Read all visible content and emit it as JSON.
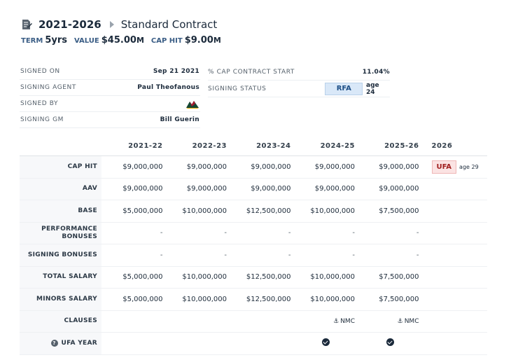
{
  "header": {
    "years": "2021-2026",
    "contract_type": "Standard Contract",
    "term_label": "TERM",
    "term_value": "5yrs",
    "value_label": "VALUE",
    "value_amount": "$45.00",
    "value_unit": "M",
    "caphit_label": "CAP HIT",
    "caphit_amount": "$9.00",
    "caphit_unit": "M"
  },
  "details_left": [
    {
      "label": "SIGNED ON",
      "value": "Sep 21 2021"
    },
    {
      "label": "SIGNING AGENT",
      "value": "Paul Theofanous"
    },
    {
      "label": "SIGNED BY",
      "value": "",
      "icon": "wild-team-logo"
    },
    {
      "label": "SIGNING GM",
      "value": "Bill Guerin"
    }
  ],
  "details_right": {
    "cap_pct_label": "% CAP CONTRACT START",
    "cap_pct_value": "11.04%",
    "status_label": "SIGNING STATUS",
    "status_value": "RFA",
    "status_age": "age 24"
  },
  "table": {
    "columns": [
      "2021-22",
      "2022-23",
      "2023-24",
      "2024-25",
      "2025-26",
      "2026"
    ],
    "rows": [
      {
        "label": "CAP HIT",
        "values": [
          "$9,000,000",
          "$9,000,000",
          "$9,000,000",
          "$9,000,000",
          "$9,000,000"
        ],
        "final": {
          "badge": "UFA",
          "age": "age 29"
        }
      },
      {
        "label": "AAV",
        "values": [
          "$9,000,000",
          "$9,000,000",
          "$9,000,000",
          "$9,000,000",
          "$9,000,000"
        ]
      },
      {
        "label": "BASE",
        "values": [
          "$5,000,000",
          "$10,000,000",
          "$12,500,000",
          "$10,000,000",
          "$7,500,000"
        ]
      },
      {
        "label": "PERFORMANCE BONUSES",
        "values": [
          "-",
          "-",
          "-",
          "-",
          "-"
        ]
      },
      {
        "label": "SIGNING BONUSES",
        "values": [
          "-",
          "-",
          "-",
          "-",
          "-"
        ]
      },
      {
        "label": "TOTAL SALARY",
        "values": [
          "$5,000,000",
          "$10,000,000",
          "$12,500,000",
          "$10,000,000",
          "$7,500,000"
        ]
      },
      {
        "label": "MINORS SALARY",
        "values": [
          "$5,000,000",
          "$10,000,000",
          "$12,500,000",
          "$10,000,000",
          "$7,500,000"
        ]
      },
      {
        "label": "CLAUSES",
        "values": [
          "",
          "",
          "",
          "NMC",
          "NMC"
        ]
      },
      {
        "label": "UFA YEAR",
        "values": [
          "",
          "",
          "",
          "check",
          "check"
        ]
      }
    ]
  }
}
